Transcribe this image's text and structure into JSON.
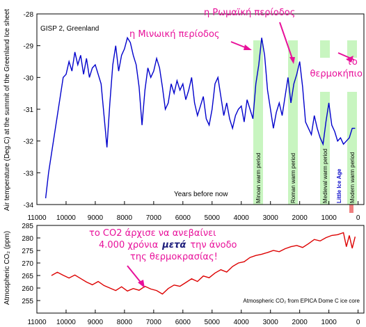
{
  "chart_data": [
    {
      "type": "line",
      "title": "GISP 2, Greenland",
      "xlabel": "Years before now",
      "ylabel": "Air temperature (Deg.C) at the summit of the Greenland Ice sheet",
      "xlim": [
        11000,
        -200
      ],
      "ylim": [
        -34,
        -28
      ],
      "xticks": [
        11000,
        10000,
        9000,
        8000,
        7000,
        6000,
        5000,
        4000,
        3000,
        2000,
        1000,
        0
      ],
      "yticks": [
        -34,
        -33,
        -32,
        -31,
        -30,
        -29,
        -28
      ],
      "color": "#0000cc",
      "x": [
        10700,
        10600,
        10500,
        10400,
        10300,
        10200,
        10100,
        10000,
        9900,
        9800,
        9700,
        9600,
        9500,
        9400,
        9300,
        9200,
        9100,
        9000,
        8900,
        8800,
        8700,
        8600,
        8500,
        8400,
        8300,
        8200,
        8100,
        8000,
        7900,
        7800,
        7700,
        7600,
        7500,
        7400,
        7300,
        7200,
        7100,
        7000,
        6900,
        6800,
        6700,
        6600,
        6500,
        6400,
        6300,
        6200,
        6100,
        6000,
        5900,
        5800,
        5700,
        5600,
        5500,
        5400,
        5300,
        5200,
        5100,
        5000,
        4900,
        4800,
        4700,
        4600,
        4500,
        4400,
        4300,
        4200,
        4100,
        4000,
        3900,
        3800,
        3700,
        3600,
        3500,
        3400,
        3300,
        3200,
        3100,
        3000,
        2900,
        2800,
        2700,
        2600,
        2500,
        2400,
        2300,
        2200,
        2100,
        2000,
        1900,
        1800,
        1700,
        1600,
        1500,
        1400,
        1300,
        1200,
        1100,
        1000,
        900,
        800,
        700,
        600,
        500,
        400,
        300,
        200,
        100
      ],
      "y": [
        -33.8,
        -33.0,
        -32.4,
        -31.8,
        -31.2,
        -30.6,
        -30.0,
        -29.9,
        -29.5,
        -29.8,
        -29.2,
        -29.6,
        -29.3,
        -29.9,
        -29.4,
        -30.0,
        -29.7,
        -29.6,
        -29.9,
        -30.2,
        -31.2,
        -32.2,
        -30.8,
        -29.6,
        -29.0,
        -29.8,
        -29.3,
        -29.1,
        -28.75,
        -28.9,
        -29.3,
        -29.6,
        -30.3,
        -31.5,
        -30.4,
        -29.7,
        -30.0,
        -29.8,
        -29.4,
        -29.7,
        -30.3,
        -31.0,
        -30.8,
        -30.2,
        -30.5,
        -30.1,
        -30.4,
        -30.2,
        -30.7,
        -30.4,
        -30.0,
        -30.8,
        -31.2,
        -30.9,
        -30.6,
        -31.3,
        -31.5,
        -31.0,
        -30.2,
        -30.0,
        -30.6,
        -31.2,
        -30.8,
        -31.3,
        -31.6,
        -31.2,
        -31.0,
        -30.9,
        -31.4,
        -30.7,
        -31.0,
        -31.3,
        -30.2,
        -29.6,
        -28.75,
        -29.3,
        -30.4,
        -31.0,
        -31.6,
        -31.1,
        -30.8,
        -31.2,
        -30.6,
        -30.0,
        -30.8,
        -30.2,
        -29.9,
        -29.5,
        -30.3,
        -31.4,
        -31.6,
        -31.8,
        -31.2,
        -31.6,
        -31.9,
        -32.1,
        -31.4,
        -30.8,
        -31.5,
        -31.7,
        -32.0,
        -31.9,
        -32.1,
        -32.0,
        -31.9,
        -31.6,
        -31.6
      ],
      "annotations": [
        "Minoan warm period",
        "Roman warm period",
        "Medieval warm period",
        "Little Ice Age",
        "Modern warm period"
      ],
      "callouts": [
        "η Μινωική περίοδος",
        "η Ρωμαϊκή περίοδος",
        "το θερμοκήπιο"
      ]
    },
    {
      "type": "line",
      "title": "Atmospheric CO₂ from EPICA Dome C ice core",
      "ylabel": "Atmospheric CO₂ (ppm)",
      "xlim": [
        11000,
        -200
      ],
      "ylim": [
        250,
        285
      ],
      "xticks": [
        11000,
        10000,
        9000,
        8000,
        7000,
        6000,
        5000,
        4000,
        3000,
        2000,
        1000,
        0
      ],
      "yticks": [
        255,
        260,
        265,
        270,
        275,
        280,
        285
      ],
      "color": "#dd0000",
      "x": [
        10500,
        10300,
        10100,
        9900,
        9700,
        9500,
        9300,
        9100,
        8900,
        8700,
        8500,
        8300,
        8100,
        7900,
        7700,
        7500,
        7300,
        7100,
        6900,
        6700,
        6500,
        6300,
        6100,
        5900,
        5700,
        5500,
        5300,
        5100,
        4900,
        4700,
        4500,
        4300,
        4100,
        3900,
        3700,
        3500,
        3300,
        3100,
        2900,
        2700,
        2500,
        2300,
        2100,
        1900,
        1700,
        1500,
        1300,
        1100,
        900,
        700,
        500,
        400,
        300,
        200,
        100
      ],
      "y": [
        265.0,
        266.3,
        265.1,
        264.0,
        265.2,
        263.8,
        262.4,
        261.3,
        262.6,
        261.0,
        260.0,
        259.0,
        260.5,
        258.8,
        259.8,
        259.1,
        260.7,
        259.6,
        259.0,
        257.6,
        259.8,
        261.2,
        260.7,
        262.2,
        263.7,
        262.6,
        264.8,
        264.1,
        266.0,
        267.3,
        266.4,
        268.6,
        270.0,
        270.5,
        272.2,
        273.0,
        273.5,
        274.2,
        275.0,
        274.5,
        275.7,
        276.5,
        277.0,
        276.2,
        277.7,
        279.4,
        278.8,
        280.1,
        281.0,
        281.3,
        282.1,
        276.5,
        281.0,
        275.9,
        280.5
      ],
      "callouts": [
        "το CO2 άρχισε να ανεβαίνει",
        "4.000 χρόνια",
        "μετά",
        "την άνοδο",
        "της θερμοκρασίας!"
      ]
    }
  ]
}
